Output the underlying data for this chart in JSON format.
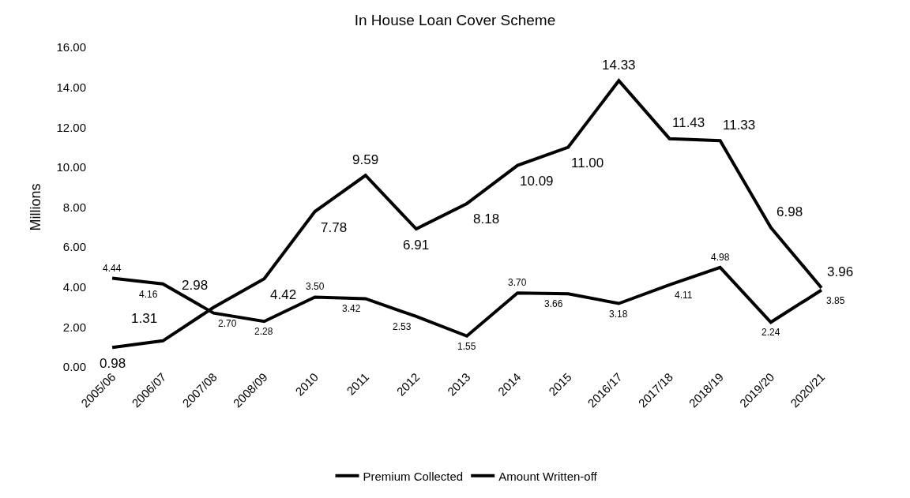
{
  "chart_data": {
    "type": "line",
    "title": "In House Loan Cover Scheme",
    "ylabel": "Millions",
    "categories": [
      "2005/06",
      "2006/07",
      "2007/08",
      "2008/09",
      "2010",
      "2011",
      "2012",
      "2013",
      "2014",
      "2015",
      "2016/17",
      "2017/18",
      "2018/19",
      "2019/20",
      "2020/21"
    ],
    "series": [
      {
        "name": "Premium Collected",
        "color": "#000000",
        "values": [
          0.98,
          1.31,
          2.98,
          4.42,
          7.78,
          9.59,
          6.91,
          8.18,
          10.09,
          11.0,
          14.33,
          11.43,
          11.33,
          6.98,
          3.96
        ],
        "value_labels": [
          "0.98",
          "1.31",
          "2.98",
          "4.42",
          "7.78",
          "9.59",
          "6.91",
          "8.18",
          "10.09",
          "11.00",
          "14.33",
          "11.43",
          "11.33",
          "6.98",
          "3.96"
        ]
      },
      {
        "name": "Amount Written-off",
        "color": "#000000",
        "values": [
          4.44,
          4.16,
          2.7,
          2.28,
          3.5,
          3.42,
          2.53,
          1.55,
          3.7,
          3.66,
          3.18,
          4.11,
          4.98,
          2.24,
          3.85
        ],
        "value_labels": [
          "4.44",
          "4.16",
          "2.70",
          "2.28",
          "3.50",
          "3.42",
          "2.53",
          "1.55",
          "3.70",
          "3.66",
          "3.18",
          "4.11",
          "4.98",
          "2.24",
          "3.85"
        ]
      }
    ],
    "ylim": [
      0,
      16
    ],
    "yticks": [
      {
        "value": 0,
        "label": "0.00"
      },
      {
        "value": 2,
        "label": "2.00"
      },
      {
        "value": 4,
        "label": "4.00"
      },
      {
        "value": 6,
        "label": "6.00"
      },
      {
        "value": 8,
        "label": "8.00"
      },
      {
        "value": 10,
        "label": "10.00"
      },
      {
        "value": 12,
        "label": "12.00"
      },
      {
        "value": 14,
        "label": "14.00"
      },
      {
        "value": 16,
        "label": "16.00"
      }
    ],
    "legend": "bottom",
    "marker": "none",
    "line_style": "solid"
  }
}
